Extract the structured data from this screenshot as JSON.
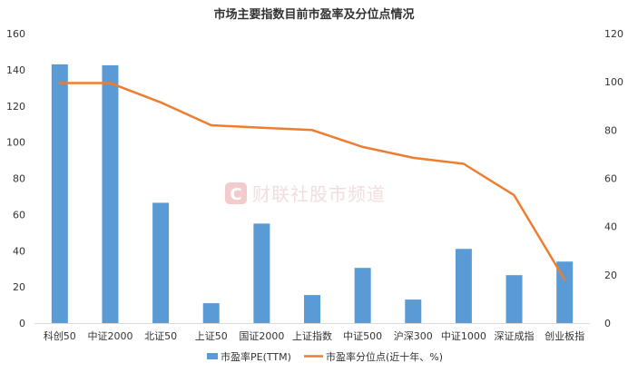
{
  "chart_data": {
    "type": "bar",
    "title": "市场主要指数目前市盈率及分位点情况",
    "categories": [
      "科创50",
      "中证2000",
      "北证50",
      "上证50",
      "国证2000",
      "上证指数",
      "中证500",
      "沪深300",
      "中证1000",
      "深证成指",
      "创业板指"
    ],
    "series": [
      {
        "name": "市盈率PE(TTM)",
        "type": "bar",
        "axis": "left",
        "color": "#5b9bd5",
        "values": [
          143,
          142.5,
          66.5,
          11,
          55,
          15.5,
          30.5,
          13,
          41,
          26.5,
          34
        ]
      },
      {
        "name": "市盈率分位点(近十年、%)",
        "type": "line",
        "axis": "right",
        "color": "#ed7d31",
        "values": [
          99.5,
          99.5,
          91.5,
          82,
          81,
          80,
          73,
          68.5,
          66,
          53,
          18
        ]
      }
    ],
    "y_left": {
      "min": 0,
      "max": 160,
      "ticks": [
        0,
        20,
        40,
        60,
        80,
        100,
        120,
        140,
        160
      ]
    },
    "y_right": {
      "min": 0,
      "max": 120,
      "ticks": [
        0,
        20,
        40,
        60,
        80,
        100,
        120
      ]
    },
    "legend_position": "bottom",
    "grid": false
  },
  "watermark": {
    "text": "财联社股市频道",
    "logo_letter": "C",
    "color": "#e9a3a3"
  }
}
